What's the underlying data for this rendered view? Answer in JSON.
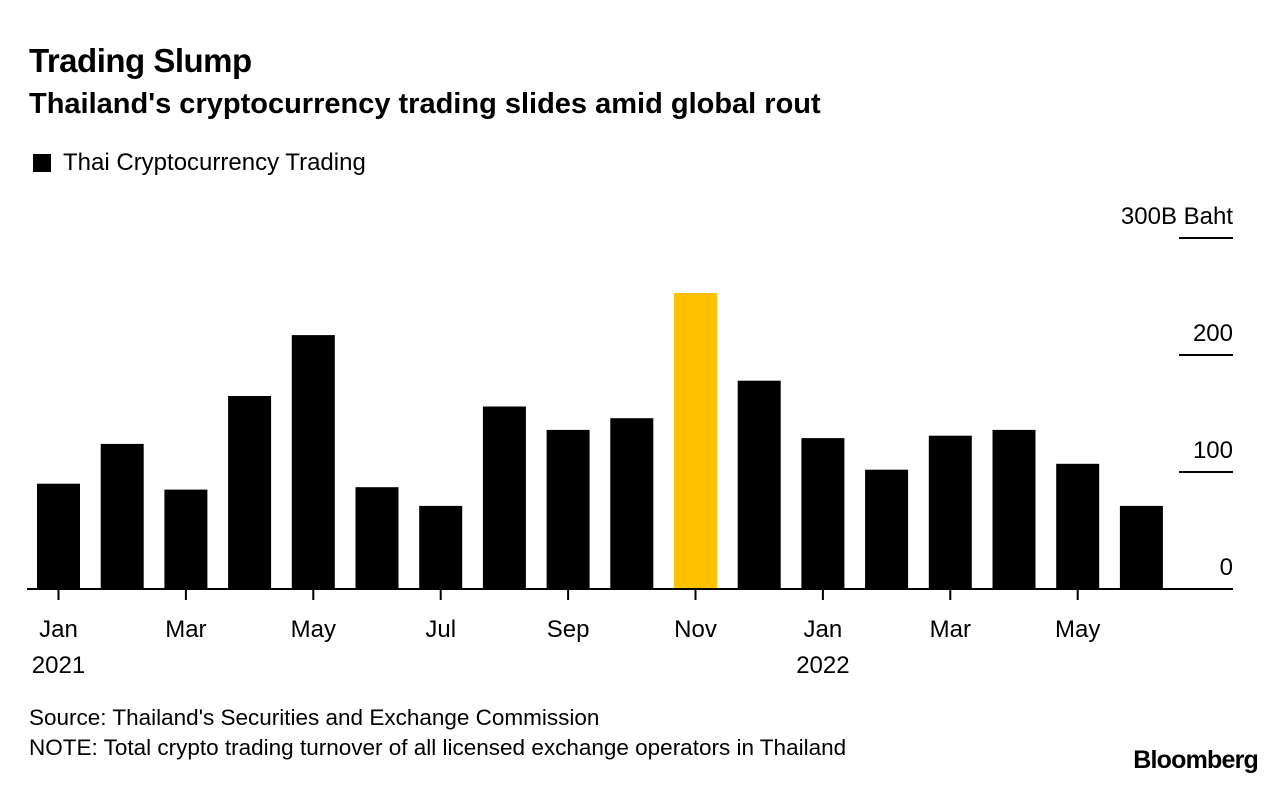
{
  "header": {
    "title": "Trading Slump",
    "subtitle": "Thailand's cryptocurrency trading slides amid global rout"
  },
  "legend": {
    "label": "Thai Cryptocurrency Trading"
  },
  "footer": {
    "source": "Source: Thailand's Securities and Exchange Commission",
    "note": "NOTE: Total crypto trading turnover of all licensed exchange operators in Thailand"
  },
  "brand": "Bloomberg",
  "colors": {
    "bar": "#000000",
    "highlight": "#FFC100",
    "axis": "#000000"
  },
  "chart_data": {
    "type": "bar",
    "title": "Trading Slump",
    "subtitle": "Thailand's cryptocurrency trading slides amid global rout",
    "legend": [
      "Thai Cryptocurrency Trading"
    ],
    "legend_position": "top-left",
    "y_unit": "B Baht",
    "ylim": [
      0,
      300
    ],
    "y_ticks": [
      0,
      100,
      200,
      300
    ],
    "y_tick_labels": [
      "0",
      "100",
      "200",
      "300B Baht"
    ],
    "y_axis_side": "right",
    "grid": false,
    "categories": [
      "2021-01",
      "2021-02",
      "2021-03",
      "2021-04",
      "2021-05",
      "2021-06",
      "2021-07",
      "2021-08",
      "2021-09",
      "2021-10",
      "2021-11",
      "2021-12",
      "2022-01",
      "2022-02",
      "2022-03",
      "2022-04",
      "2022-05",
      "2022-06"
    ],
    "x_tick_labels": [
      {
        "category": "2021-01",
        "label": "Jan",
        "year": "2021"
      },
      {
        "category": "2021-03",
        "label": "Mar",
        "year": ""
      },
      {
        "category": "2021-05",
        "label": "May",
        "year": ""
      },
      {
        "category": "2021-07",
        "label": "Jul",
        "year": ""
      },
      {
        "category": "2021-09",
        "label": "Sep",
        "year": ""
      },
      {
        "category": "2021-11",
        "label": "Nov",
        "year": ""
      },
      {
        "category": "2022-01",
        "label": "Jan",
        "year": "2022"
      },
      {
        "category": "2022-03",
        "label": "Mar",
        "year": ""
      },
      {
        "category": "2022-05",
        "label": "May",
        "year": ""
      }
    ],
    "series": [
      {
        "name": "Thai Cryptocurrency Trading",
        "values": [
          90,
          124,
          85,
          165,
          217,
          87,
          71,
          156,
          136,
          146,
          253,
          178,
          129,
          102,
          131,
          136,
          107,
          71
        ]
      }
    ],
    "highlight_category": "2021-11"
  }
}
